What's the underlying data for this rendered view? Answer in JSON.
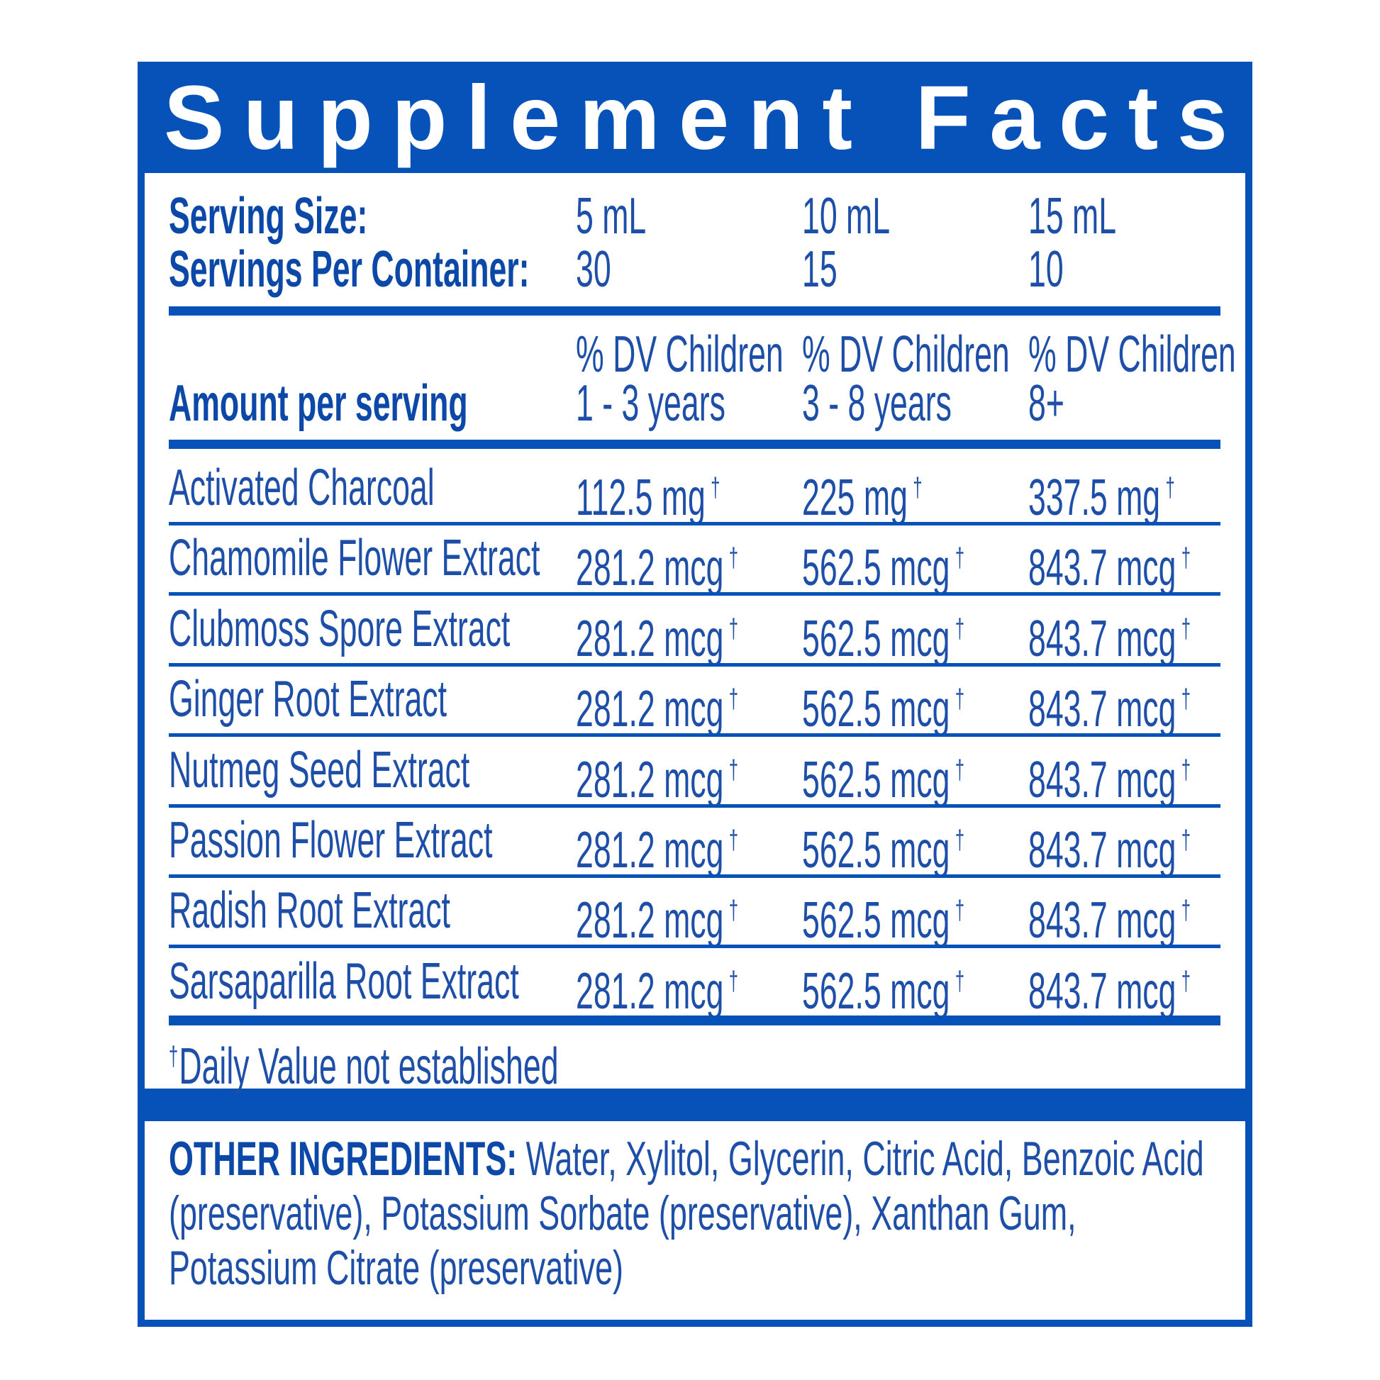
{
  "header": {
    "title": "Supplement Facts"
  },
  "serving": {
    "size_label": "Serving Size:",
    "sizes": [
      "5 mL",
      "10 mL",
      "15 mL"
    ],
    "per_container_label": "Servings Per Container:",
    "per_container": [
      "30",
      "15",
      "10"
    ]
  },
  "table": {
    "amount_label": "Amount per serving",
    "dv_headers": [
      [
        "% DV Children",
        "1 - 3 years"
      ],
      [
        "% DV Children",
        "3 - 8 years"
      ],
      [
        "% DV Children",
        "8+"
      ]
    ],
    "dagger": "†",
    "rows": [
      {
        "name": "Activated Charcoal",
        "amounts": [
          "112.5 mg",
          "225 mg",
          "337.5 mg"
        ]
      },
      {
        "name": "Chamomile Flower Extract",
        "amounts": [
          "281.2 mcg",
          "562.5 mcg",
          "843.7 mcg"
        ]
      },
      {
        "name": "Clubmoss Spore Extract",
        "amounts": [
          "281.2 mcg",
          "562.5 mcg",
          "843.7 mcg"
        ]
      },
      {
        "name": "Ginger Root Extract",
        "amounts": [
          "281.2 mcg",
          "562.5 mcg",
          "843.7 mcg"
        ]
      },
      {
        "name": "Nutmeg Seed Extract",
        "amounts": [
          "281.2 mcg",
          "562.5 mcg",
          "843.7 mcg"
        ]
      },
      {
        "name": "Passion Flower Extract",
        "amounts": [
          "281.2 mcg",
          "562.5 mcg",
          "843.7 mcg"
        ]
      },
      {
        "name": "Radish Root Extract",
        "amounts": [
          "281.2 mcg",
          "562.5 mcg",
          "843.7 mcg"
        ]
      },
      {
        "name": "Sarsaparilla Root Extract",
        "amounts": [
          "281.2 mcg",
          "562.5 mcg",
          "843.7 mcg"
        ]
      }
    ],
    "footnote": "Daily Value not established"
  },
  "other_ingredients": {
    "label": "OTHER INGREDIENTS:",
    "text": "Water, Xylitol, Glycerin, Citric Acid, Benzoic Acid (preservative), Potassium Sorbate (preservative), Xanthan Gum, Potassium Citrate (preservative)"
  }
}
